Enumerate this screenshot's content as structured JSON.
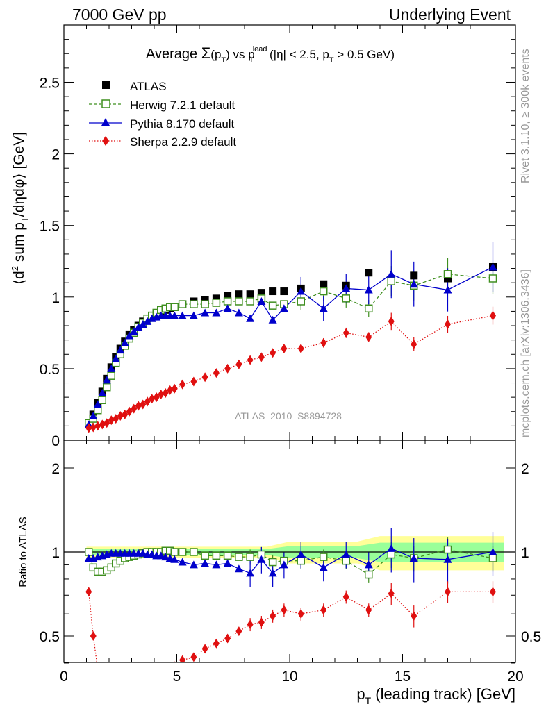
{
  "header": {
    "left": "7000 GeV pp",
    "right": "Underlying Event"
  },
  "title": {
    "prefix": "Average ",
    "sigma": "Σ",
    "paren_open": "(p",
    "sub_T": "T",
    "paren_close": ")",
    "vs": " vs p",
    "sup_lead": "lead",
    "sub_T2": "T",
    "suffix": " (|η| < 2.5, p",
    "sub_T3": "T",
    "suffix2": " > 0.5 GeV)"
  },
  "ylabel_main": {
    "a": "⟨d",
    "sup": "2",
    "b": " sum p",
    "sub": "T",
    "c": "/dηdφ⟩ [GeV]"
  },
  "ylabel_ratio": "Ratio to ATLAS",
  "xlabel": {
    "a": "p",
    "sub": "T",
    "b": " (leading track) [GeV]"
  },
  "side_labels": {
    "rivet": "Rivet 3.1.10, ≥ 300k events",
    "mcplots": "mcplots.cern.ch [arXiv:1306.3436]"
  },
  "watermark": "ATLAS_2010_S8894728",
  "legend": [
    "ATLAS",
    "Herwig 7.2.1 default",
    "Pythia 8.170 default",
    "Sherpa 2.2.9 default"
  ],
  "colors": {
    "atlas": "#000000",
    "herwig": "#3f8f1f",
    "pythia": "#0000cc",
    "sherpa": "#e01010",
    "band_inner": "#99ff99",
    "band_outer": "#ffff99"
  },
  "chart_data": [
    {
      "type": "line",
      "panel": "main",
      "xlim": [
        0,
        20
      ],
      "ylim": [
        0,
        2.9
      ],
      "x_ticks": [
        "0",
        "5",
        "10",
        "15",
        "20"
      ],
      "y_ticks": [
        "0",
        "0.5",
        "1",
        "1.5",
        "2",
        "2.5"
      ],
      "series": [
        {
          "name": "ATLAS",
          "marker": "filled-square",
          "x": [
            1.1,
            1.3,
            1.5,
            1.7,
            1.9,
            2.1,
            2.3,
            2.5,
            2.7,
            2.9,
            3.1,
            3.3,
            3.5,
            3.7,
            3.9,
            4.1,
            4.3,
            4.5,
            4.7,
            4.9,
            5.25,
            5.75,
            6.25,
            6.75,
            7.25,
            7.75,
            8.25,
            8.75,
            9.25,
            9.75,
            10.5,
            11.5,
            12.5,
            13.5,
            14.5,
            15.5,
            17,
            19
          ],
          "y": [
            0.12,
            0.18,
            0.26,
            0.34,
            0.43,
            0.51,
            0.58,
            0.64,
            0.69,
            0.74,
            0.77,
            0.8,
            0.83,
            0.85,
            0.87,
            0.89,
            0.9,
            0.91,
            0.92,
            0.93,
            0.95,
            0.97,
            0.98,
            0.99,
            1.01,
            1.02,
            1.02,
            1.03,
            1.04,
            1.04,
            1.06,
            1.09,
            1.08,
            1.17,
            1.12,
            1.15,
            1.13,
            1.21
          ]
        },
        {
          "name": "Herwig 7.2.1 default",
          "marker": "open-square",
          "x": [
            1.1,
            1.3,
            1.5,
            1.7,
            1.9,
            2.1,
            2.3,
            2.5,
            2.7,
            2.9,
            3.1,
            3.3,
            3.5,
            3.7,
            3.9,
            4.1,
            4.3,
            4.5,
            4.7,
            4.9,
            5.25,
            5.75,
            6.25,
            6.75,
            7.25,
            7.75,
            8.25,
            8.75,
            9.25,
            9.75,
            10.5,
            11.5,
            12.5,
            13.5,
            14.5,
            15.5,
            17,
            19
          ],
          "y": [
            0.12,
            0.15,
            0.21,
            0.28,
            0.37,
            0.45,
            0.54,
            0.6,
            0.66,
            0.71,
            0.75,
            0.79,
            0.82,
            0.85,
            0.87,
            0.89,
            0.91,
            0.92,
            0.93,
            0.93,
            0.95,
            0.95,
            0.95,
            0.96,
            0.97,
            0.97,
            0.97,
            0.99,
            0.94,
            0.95,
            0.97,
            1.04,
            0.99,
            0.92,
            1.11,
            1.08,
            1.16,
            1.13
          ]
        },
        {
          "name": "Pythia 8.170 default",
          "marker": "filled-triangle",
          "x": [
            1.1,
            1.3,
            1.5,
            1.7,
            1.9,
            2.1,
            2.3,
            2.5,
            2.7,
            2.9,
            3.1,
            3.3,
            3.5,
            3.7,
            3.9,
            4.1,
            4.3,
            4.5,
            4.7,
            4.9,
            5.25,
            5.75,
            6.25,
            6.75,
            7.25,
            7.75,
            8.25,
            8.75,
            9.25,
            9.75,
            10.5,
            11.5,
            12.5,
            13.5,
            14.5,
            15.5,
            17,
            19
          ],
          "y": [
            0.11,
            0.17,
            0.25,
            0.33,
            0.42,
            0.5,
            0.57,
            0.63,
            0.68,
            0.73,
            0.76,
            0.79,
            0.81,
            0.83,
            0.85,
            0.86,
            0.87,
            0.87,
            0.87,
            0.87,
            0.87,
            0.87,
            0.89,
            0.89,
            0.92,
            0.89,
            0.85,
            0.97,
            0.84,
            0.92,
            1.04,
            0.92,
            1.06,
            1.05,
            1.16,
            1.09,
            1.05,
            1.21
          ]
        },
        {
          "name": "Sherpa 2.2.9 default",
          "marker": "filled-diamond",
          "x": [
            1.1,
            1.3,
            1.5,
            1.7,
            1.9,
            2.1,
            2.3,
            2.5,
            2.7,
            2.9,
            3.1,
            3.3,
            3.5,
            3.7,
            3.9,
            4.1,
            4.3,
            4.5,
            4.7,
            4.9,
            5.25,
            5.75,
            6.25,
            6.75,
            7.25,
            7.75,
            8.25,
            8.75,
            9.25,
            9.75,
            10.5,
            11.5,
            12.5,
            13.5,
            14.5,
            15.5,
            17,
            19
          ],
          "y": [
            0.085,
            0.09,
            0.1,
            0.11,
            0.12,
            0.14,
            0.15,
            0.17,
            0.18,
            0.2,
            0.22,
            0.24,
            0.25,
            0.27,
            0.29,
            0.3,
            0.32,
            0.33,
            0.35,
            0.36,
            0.39,
            0.41,
            0.44,
            0.47,
            0.5,
            0.53,
            0.56,
            0.58,
            0.61,
            0.64,
            0.64,
            0.68,
            0.75,
            0.72,
            0.83,
            0.67,
            0.81,
            0.87
          ]
        }
      ]
    },
    {
      "type": "line",
      "panel": "ratio",
      "xlim": [
        0,
        20
      ],
      "ylim": [
        0.35,
        2.3
      ],
      "x_ticks": [
        "0",
        "5",
        "10",
        "15",
        "20"
      ],
      "y_ticks": [
        "0.5",
        "1",
        "2"
      ],
      "series": [
        {
          "name": "Herwig 7.2.1 default",
          "x": [
            1.1,
            1.3,
            1.5,
            1.7,
            1.9,
            2.1,
            2.3,
            2.5,
            2.7,
            2.9,
            3.1,
            3.3,
            3.5,
            3.7,
            3.9,
            4.1,
            4.3,
            4.5,
            4.7,
            4.9,
            5.25,
            5.75,
            6.25,
            6.75,
            7.25,
            7.75,
            8.25,
            8.75,
            9.25,
            9.75,
            10.5,
            11.5,
            12.5,
            13.5,
            14.5,
            15.5,
            17,
            19
          ],
          "y": [
            1.0,
            0.88,
            0.85,
            0.85,
            0.86,
            0.88,
            0.91,
            0.93,
            0.95,
            0.96,
            0.97,
            0.98,
            0.99,
            1.0,
            1.0,
            1.0,
            1.0,
            1.01,
            1.01,
            1.0,
            1.0,
            1.0,
            0.97,
            0.97,
            0.97,
            0.96,
            0.96,
            0.98,
            0.92,
            0.93,
            0.93,
            0.96,
            0.93,
            0.83,
            0.98,
            0.95,
            1.02,
            0.95
          ]
        },
        {
          "name": "Pythia 8.170 default",
          "x": [
            1.1,
            1.3,
            1.5,
            1.7,
            1.9,
            2.1,
            2.3,
            2.5,
            2.7,
            2.9,
            3.1,
            3.3,
            3.5,
            3.7,
            3.9,
            4.1,
            4.3,
            4.5,
            4.7,
            4.9,
            5.25,
            5.75,
            6.25,
            6.75,
            7.25,
            7.75,
            8.25,
            8.75,
            9.25,
            9.75,
            10.5,
            11.5,
            12.5,
            13.5,
            14.5,
            15.5,
            17,
            19
          ],
          "y": [
            0.95,
            0.95,
            0.96,
            0.97,
            0.98,
            0.99,
            0.99,
            0.99,
            0.99,
            0.99,
            0.99,
            0.99,
            0.99,
            0.98,
            0.98,
            0.97,
            0.97,
            0.96,
            0.95,
            0.94,
            0.92,
            0.9,
            0.91,
            0.9,
            0.91,
            0.87,
            0.84,
            0.94,
            0.84,
            0.9,
            0.98,
            0.88,
            0.98,
            0.9,
            1.03,
            0.95,
            0.94,
            1.0
          ]
        },
        {
          "name": "Sherpa 2.2.9 default",
          "x": [
            1.1,
            1.3,
            1.5,
            1.7,
            1.9,
            2.1,
            2.3,
            2.5,
            2.7,
            2.9,
            3.1,
            3.3,
            3.5,
            3.7,
            3.9,
            4.1,
            4.3,
            4.5,
            4.7,
            4.9,
            5.25,
            5.75,
            6.25,
            6.75,
            7.25,
            7.75,
            8.25,
            8.75,
            9.25,
            9.75,
            10.5,
            11.5,
            12.5,
            13.5,
            14.5,
            15.5,
            17,
            19
          ],
          "y": [
            0.72,
            0.5,
            0.38,
            0.32,
            0.28,
            0.27,
            0.26,
            0.27,
            0.26,
            0.27,
            0.28,
            0.3,
            0.3,
            0.32,
            0.33,
            0.34,
            0.35,
            0.36,
            0.38,
            0.39,
            0.41,
            0.42,
            0.45,
            0.47,
            0.49,
            0.52,
            0.55,
            0.56,
            0.59,
            0.62,
            0.6,
            0.62,
            0.69,
            0.62,
            0.71,
            0.59,
            0.72,
            0.72
          ]
        }
      ]
    }
  ]
}
